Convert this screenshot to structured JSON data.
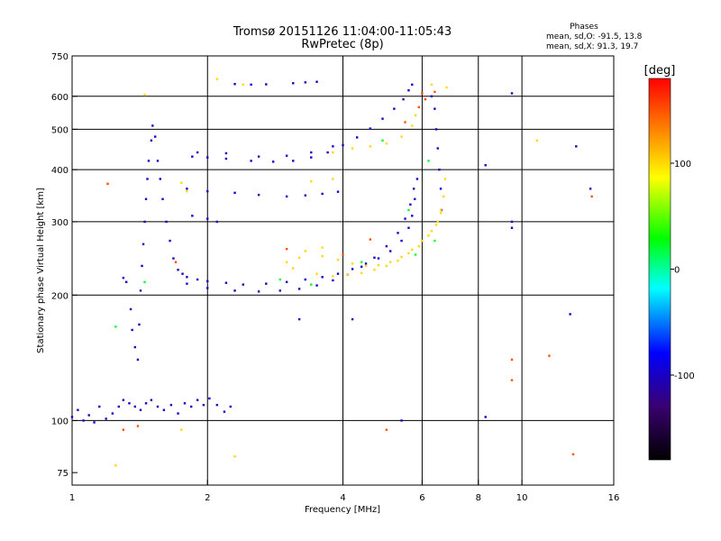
{
  "header": {
    "title": "Tromsø 20151126 11:04:00-11:05:43",
    "subtitle": "RwPretec (8p)"
  },
  "phases": {
    "heading": "Phases",
    "line_o": "mean, sd,O: -91.5, 13.8",
    "line_x": "mean, sd,X:  91.3, 19.7"
  },
  "colors": {
    "background": "#ffffff",
    "grid": "#000000",
    "axis_text": "#000000"
  },
  "chart_data": {
    "type": "scatter",
    "xlabel": "Frequency [MHz]",
    "ylabel": "Stationary phase Virtual Height [km]",
    "xscale": "log",
    "yscale": "log",
    "xlim": [
      1,
      16
    ],
    "ylim": [
      70,
      750
    ],
    "x_ticks": [
      1,
      2,
      4,
      6,
      8,
      10,
      16
    ],
    "x_tick_labels": [
      "1",
      "2",
      "4",
      "6",
      "8",
      "10",
      "16"
    ],
    "x_gridlines": [
      2,
      4,
      6,
      8,
      10
    ],
    "y_ticks": [
      75,
      100,
      200,
      300,
      400,
      500,
      600,
      750
    ],
    "y_tick_labels": [
      "75",
      "100",
      "200",
      "300",
      "400",
      "500",
      "600",
      "750"
    ],
    "y_gridlines": [
      100,
      200,
      300,
      400,
      500,
      600
    ],
    "grid": true,
    "colorbar": {
      "label": "[deg]",
      "min": -180,
      "max": 180,
      "ticks": [
        100,
        0,
        -100
      ],
      "tick_labels": [
        "100",
        "0",
        "-100"
      ],
      "colors": [
        "#000000",
        "#3a0070",
        "#0000ff",
        "#00ffff",
        "#00ff00",
        "#ffff00",
        "#ff7f00",
        "#ff0000"
      ]
    },
    "series": [
      {
        "phase": -100,
        "points": [
          [
            1.0,
            102
          ],
          [
            1.03,
            106
          ],
          [
            1.06,
            100
          ],
          [
            1.09,
            103
          ],
          [
            1.12,
            99
          ],
          [
            1.15,
            108
          ],
          [
            1.19,
            101
          ],
          [
            1.23,
            104
          ],
          [
            1.27,
            108
          ],
          [
            1.3,
            112
          ],
          [
            1.34,
            110
          ],
          [
            1.38,
            108
          ],
          [
            1.42,
            106
          ],
          [
            1.46,
            110
          ],
          [
            1.5,
            112
          ],
          [
            1.55,
            108
          ],
          [
            1.6,
            106
          ],
          [
            1.66,
            109
          ],
          [
            1.72,
            104
          ],
          [
            1.78,
            110
          ],
          [
            1.84,
            108
          ],
          [
            1.9,
            112
          ],
          [
            1.96,
            109
          ],
          [
            2.02,
            113
          ],
          [
            2.1,
            109
          ],
          [
            2.18,
            105
          ],
          [
            2.25,
            108
          ],
          [
            1.3,
            220
          ],
          [
            1.32,
            215
          ],
          [
            1.35,
            185
          ],
          [
            1.36,
            165
          ],
          [
            1.38,
            150
          ],
          [
            1.4,
            140
          ],
          [
            1.41,
            170
          ],
          [
            1.42,
            205
          ],
          [
            1.43,
            235
          ],
          [
            1.44,
            265
          ],
          [
            1.45,
            300
          ],
          [
            1.46,
            340
          ],
          [
            1.47,
            380
          ],
          [
            1.48,
            420
          ],
          [
            1.5,
            470
          ],
          [
            1.51,
            510
          ],
          [
            1.53,
            480
          ],
          [
            1.55,
            420
          ],
          [
            1.57,
            380
          ],
          [
            1.59,
            340
          ],
          [
            1.62,
            300
          ],
          [
            1.65,
            270
          ],
          [
            1.68,
            245
          ],
          [
            1.72,
            230
          ],
          [
            1.76,
            225
          ],
          [
            1.8,
            221
          ],
          [
            1.9,
            218
          ],
          [
            2.0,
            216
          ],
          [
            2.2,
            214
          ],
          [
            2.4,
            212
          ],
          [
            2.7,
            213
          ],
          [
            3.0,
            215
          ],
          [
            3.3,
            218
          ],
          [
            3.6,
            221
          ],
          [
            3.9,
            225
          ],
          [
            4.2,
            231
          ],
          [
            4.5,
            238
          ],
          [
            4.8,
            245
          ],
          [
            5.1,
            255
          ],
          [
            5.4,
            270
          ],
          [
            5.6,
            290
          ],
          [
            5.7,
            310
          ],
          [
            5.78,
            340
          ],
          [
            5.85,
            380
          ],
          [
            1.8,
            213
          ],
          [
            2.0,
            208
          ],
          [
            2.3,
            205
          ],
          [
            2.6,
            204
          ],
          [
            2.9,
            205
          ],
          [
            3.2,
            207
          ],
          [
            3.5,
            211
          ],
          [
            3.8,
            217
          ],
          [
            4.1,
            224
          ],
          [
            4.4,
            234
          ],
          [
            4.7,
            246
          ],
          [
            5.0,
            262
          ],
          [
            5.3,
            282
          ],
          [
            5.5,
            305
          ],
          [
            5.65,
            330
          ],
          [
            5.75,
            360
          ],
          [
            1.85,
            430
          ],
          [
            2.0,
            428
          ],
          [
            2.2,
            425
          ],
          [
            2.5,
            420
          ],
          [
            2.8,
            418
          ],
          [
            3.1,
            420
          ],
          [
            3.4,
            428
          ],
          [
            3.7,
            440
          ],
          [
            4.0,
            458
          ],
          [
            4.3,
            478
          ],
          [
            4.6,
            502
          ],
          [
            4.9,
            530
          ],
          [
            5.2,
            560
          ],
          [
            5.45,
            590
          ],
          [
            5.6,
            620
          ],
          [
            5.7,
            640
          ],
          [
            1.9,
            440
          ],
          [
            2.2,
            438
          ],
          [
            2.6,
            430
          ],
          [
            3.0,
            432
          ],
          [
            3.4,
            440
          ],
          [
            3.8,
            455
          ],
          [
            1.8,
            360
          ],
          [
            2.0,
            355
          ],
          [
            2.3,
            352
          ],
          [
            2.6,
            348
          ],
          [
            3.0,
            345
          ],
          [
            3.3,
            347
          ],
          [
            3.6,
            350
          ],
          [
            3.9,
            354
          ],
          [
            1.85,
            310
          ],
          [
            2.0,
            305
          ],
          [
            2.1,
            300
          ],
          [
            2.3,
            642
          ],
          [
            2.5,
            640
          ],
          [
            2.7,
            641
          ],
          [
            3.1,
            645
          ],
          [
            3.3,
            648
          ],
          [
            3.5,
            650
          ],
          [
            6.3,
            600
          ],
          [
            6.4,
            560
          ],
          [
            6.45,
            500
          ],
          [
            6.5,
            450
          ],
          [
            6.55,
            400
          ],
          [
            6.6,
            360
          ],
          [
            6.62,
            320
          ],
          [
            9.5,
            300
          ],
          [
            9.5,
            290
          ],
          [
            9.5,
            610
          ],
          [
            14.2,
            360
          ],
          [
            12.8,
            180
          ],
          [
            8.3,
            102
          ],
          [
            8.3,
            410
          ],
          [
            13.2,
            455
          ],
          [
            3.2,
            175
          ],
          [
            4.2,
            175
          ],
          [
            5.4,
            100
          ]
        ]
      },
      {
        "phase": 20,
        "points": [
          [
            1.25,
            168
          ],
          [
            1.45,
            215
          ],
          [
            2.9,
            218
          ],
          [
            3.4,
            212
          ],
          [
            4.4,
            240
          ],
          [
            5.6,
            320
          ],
          [
            5.8,
            250
          ],
          [
            6.4,
            270
          ],
          [
            6.2,
            420
          ],
          [
            4.9,
            470
          ]
        ]
      },
      {
        "phase": 100,
        "points": [
          [
            3.3,
            255
          ],
          [
            3.6,
            248
          ],
          [
            3.9,
            243
          ],
          [
            4.2,
            238
          ],
          [
            4.5,
            235
          ],
          [
            4.8,
            236
          ],
          [
            5.1,
            240
          ],
          [
            5.4,
            247
          ],
          [
            5.7,
            257
          ],
          [
            6.0,
            270
          ],
          [
            6.3,
            285
          ],
          [
            6.5,
            300
          ],
          [
            6.6,
            320
          ],
          [
            3.5,
            225
          ],
          [
            3.8,
            222
          ],
          [
            4.1,
            224
          ],
          [
            4.4,
            226
          ],
          [
            4.7,
            230
          ],
          [
            5.0,
            235
          ],
          [
            5.3,
            242
          ],
          [
            5.6,
            252
          ],
          [
            5.9,
            262
          ],
          [
            6.2,
            278
          ],
          [
            6.45,
            295
          ],
          [
            6.6,
            315
          ],
          [
            6.7,
            345
          ],
          [
            6.75,
            380
          ],
          [
            3.8,
            440
          ],
          [
            4.2,
            450
          ],
          [
            4.6,
            455
          ],
          [
            5.0,
            462
          ],
          [
            5.4,
            480
          ],
          [
            5.7,
            510
          ],
          [
            5.8,
            540
          ],
          [
            3.0,
            240
          ],
          [
            3.1,
            232
          ],
          [
            3.2,
            246
          ],
          [
            3.6,
            260
          ],
          [
            3.4,
            375
          ],
          [
            3.8,
            380
          ],
          [
            1.75,
            372
          ],
          [
            1.8,
            355
          ],
          [
            2.1,
            660
          ],
          [
            2.4,
            640
          ],
          [
            6.3,
            640
          ],
          [
            6.8,
            630
          ],
          [
            1.45,
            605
          ],
          [
            1.25,
            78
          ],
          [
            2.3,
            82
          ],
          [
            1.75,
            95
          ],
          [
            10.8,
            470
          ]
        ]
      },
      {
        "phase": 150,
        "points": [
          [
            1.2,
            370
          ],
          [
            1.7,
            240
          ],
          [
            3.0,
            258
          ],
          [
            4.0,
            250
          ],
          [
            4.6,
            272
          ],
          [
            5.5,
            520
          ],
          [
            5.9,
            565
          ],
          [
            6.1,
            590
          ],
          [
            6.4,
            615
          ],
          [
            1.4,
            97
          ],
          [
            1.3,
            95
          ],
          [
            5.0,
            95
          ],
          [
            9.5,
            140
          ],
          [
            9.5,
            125
          ],
          [
            13.0,
            83
          ],
          [
            11.5,
            143
          ],
          [
            14.3,
            345
          ],
          [
            6.0,
            610
          ]
        ]
      }
    ]
  }
}
